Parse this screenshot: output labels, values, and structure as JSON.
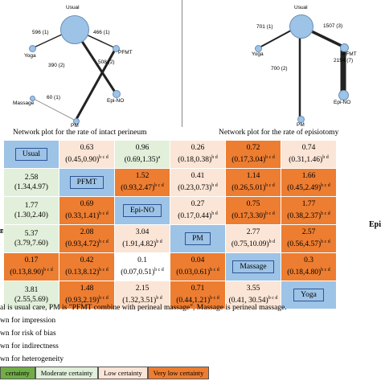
{
  "left_plot": {
    "caption": "Network plot for the rate of intact perineum",
    "nodes": {
      "usual": "Usual",
      "yoga": "Yoga",
      "pfmt": "PFMT",
      "massage": "Massage",
      "epi_no": "Epi-NO",
      "pm": "PM"
    },
    "edges": {
      "usual_yoga": "596 (1)",
      "usual_pfmt": "466 (1)",
      "usual_epino": "390 (2)",
      "pfmt_pm": "508 (2)",
      "massage_pm": "60 (1)"
    }
  },
  "right_plot": {
    "caption": "Network plot for the rate of episiotomy",
    "nodes": {
      "usual": "Usual",
      "yoga": "Yoga",
      "pfmt": "PFMT",
      "epi_no": "Epi-NO",
      "pm": "PM"
    },
    "edges": {
      "usual_yoga": "701 (1)",
      "usual_pfmt": "1507 (3)",
      "pfmt_epino": "2154 (7)",
      "usual_pm": "700 (2)"
    }
  },
  "table": {
    "rows": [
      [
        {
          "t": "diag",
          "label": "Usual"
        },
        {
          "t": "low",
          "v": "0.63",
          "ci": "(0.45,0.90)",
          "sup": "b c d"
        },
        {
          "t": "mod",
          "v": "0.96",
          "ci": "(0.69,1.35)",
          "sup": "a"
        },
        {
          "t": "low",
          "v": "0.26",
          "ci": "(0.18,0.38)",
          "sup": "b d"
        },
        {
          "t": "vlow",
          "v": "0.72",
          "ci": "(0.17,3.04)",
          "sup": "b c d"
        },
        {
          "t": "low",
          "v": "0.74",
          "ci": "(0.31,1.46)",
          "sup": "b d"
        }
      ],
      [
        {
          "t": "mod",
          "v": "2.58",
          "ci": "(1.34,4.97)",
          "sup": ""
        },
        {
          "t": "diag",
          "label": "PFMT"
        },
        {
          "t": "vlow",
          "v": "1.52",
          "ci": "(0.93,2.47)",
          "sup": "b c d"
        },
        {
          "t": "low",
          "v": "0.41",
          "ci": "(0.23,0.73)",
          "sup": "b d"
        },
        {
          "t": "vlow",
          "v": "1.14",
          "ci": "(0.26,5.01)",
          "sup": "b c d"
        },
        {
          "t": "vlow",
          "v": "1.66",
          "ci": "(0.45,2.49)",
          "sup": "b c d"
        }
      ],
      [
        {
          "t": "mod",
          "v": "1.77",
          "ci": "(1.30,2.40)",
          "sup": ""
        },
        {
          "t": "vlow",
          "v": "0.69",
          "ci": "(0.33,1.41)",
          "sup": "b c d"
        },
        {
          "t": "diag",
          "label": "Epi-NO"
        },
        {
          "t": "low",
          "v": "0.27",
          "ci": "(0.17,0.44)",
          "sup": "b d"
        },
        {
          "t": "vlow",
          "v": "0.75",
          "ci": "(0.17,3.30)",
          "sup": "b c d"
        },
        {
          "t": "vlow",
          "v": "1.77",
          "ci": "(0.38,2.37)",
          "sup": "b c d"
        }
      ],
      [
        {
          "t": "mod",
          "v": "5.37",
          "ci": "(3.79,7.60)",
          "sup": ""
        },
        {
          "t": "vlow",
          "v": "2.08",
          "ci": "(0.93,4.72)",
          "sup": "b c d"
        },
        {
          "t": "low",
          "v": "3.04",
          "ci": "(1.91,4.82)",
          "sup": "b d"
        },
        {
          "t": "diag",
          "label": "PM"
        },
        {
          "t": "low",
          "v": "2.77",
          "ci": "(0.75,10.09)",
          "sup": "b d"
        },
        {
          "t": "vlow",
          "v": "2.57",
          "ci": "(0.56,4.57)",
          "sup": "b c d"
        }
      ],
      [
        {
          "t": "vlow",
          "v": "0.17",
          "ci": "(0.13,8.90)",
          "sup": "b c d"
        },
        {
          "t": "vlow",
          "v": "0.42",
          "ci": "(0.13,8.12)",
          "sup": "b c d"
        },
        {
          "t": "white",
          "v": "0.1",
          "ci": "(0.07,0.51)",
          "sup": "b c d"
        },
        {
          "t": "vlow",
          "v": "0.04",
          "ci": "(0.03,0.61)",
          "sup": "b c d"
        },
        {
          "t": "diag",
          "label": "Massage"
        },
        {
          "t": "vlow",
          "v": "0.3",
          "ci": "(0.18,4.80)",
          "sup": "b c d"
        }
      ],
      [
        {
          "t": "mod",
          "v": "3.81",
          "ci": "(2.55,5.69)",
          "sup": ""
        },
        {
          "t": "vlow",
          "v": "1.48",
          "ci": "(0.93,2.19)",
          "sup": "b c d"
        },
        {
          "t": "low",
          "v": "2.15",
          "ci": "(1.32,3.51)",
          "sup": "b d"
        },
        {
          "t": "vlow",
          "v": "0.71",
          "ci": "(0.44,1.21)",
          "sup": "b c d"
        },
        {
          "t": "low",
          "v": "3.55",
          "ci": "(0.41, 30.54)",
          "sup": "b c d"
        },
        {
          "t": "diag",
          "label": "Yoga"
        }
      ]
    ]
  },
  "side_labels": {
    "left": "n",
    "right": "Epi"
  },
  "footnotes": {
    "line1": "al is usual care, PM is \"PFMT combine with perineal massage\", Massage is perineal massage.",
    "line2": "wn for impression",
    "line3": "wn for risk of bias",
    "line4": "wn for indirectness",
    "line5": "wn for heterogeneity"
  },
  "legend": {
    "high": "certainty",
    "moderate": "Moderate certainty",
    "low": "Low certainty",
    "very_low": "Very low certainty"
  },
  "colors": {
    "diag": "#9dc3e6",
    "moderate": "#e2efda",
    "low": "#fbe5d6",
    "very_low": "#ed7d31",
    "high": "#70ad47"
  }
}
